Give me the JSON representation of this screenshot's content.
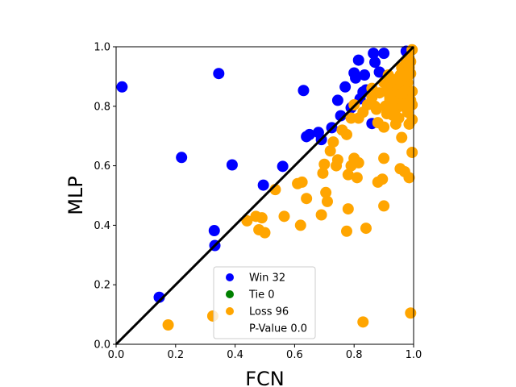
{
  "chart_data": {
    "type": "scatter",
    "title": "",
    "xlabel": "FCN",
    "ylabel": "MLP",
    "xlim": [
      0,
      1
    ],
    "ylim": [
      0,
      1
    ],
    "xticks": [
      "0.0",
      "0.2",
      "0.4",
      "0.6",
      "0.8",
      "1.0"
    ],
    "yticks": [
      "0.0",
      "0.2",
      "0.4",
      "0.6",
      "0.8",
      "1.0"
    ],
    "grid": false,
    "legend_position": "bottom-center",
    "diagonal_line": {
      "from": [
        0,
        0
      ],
      "to": [
        1,
        1
      ],
      "color": "#000000"
    },
    "legend": [
      {
        "label": "Win 32",
        "color": "#0000ff",
        "marker": "circle"
      },
      {
        "label": "Tie 0",
        "color": "#008000",
        "marker": "circle"
      },
      {
        "label": "Loss 96",
        "color": "#ffa500",
        "marker": "circle"
      },
      {
        "label": "P-Value 0.0",
        "color": "none",
        "marker": "none"
      }
    ],
    "series": [
      {
        "name": "Win 32",
        "color": "#0000ff",
        "points": [
          [
            0.02,
            0.865
          ],
          [
            0.345,
            0.91
          ],
          [
            0.22,
            0.628
          ],
          [
            0.39,
            0.603
          ],
          [
            0.495,
            0.535
          ],
          [
            0.56,
            0.598
          ],
          [
            0.33,
            0.382
          ],
          [
            0.332,
            0.332
          ],
          [
            0.145,
            0.158
          ],
          [
            0.63,
            0.853
          ],
          [
            0.64,
            0.698
          ],
          [
            0.65,
            0.705
          ],
          [
            0.68,
            0.712
          ],
          [
            0.69,
            0.688
          ],
          [
            0.725,
            0.728
          ],
          [
            0.745,
            0.82
          ],
          [
            0.755,
            0.768
          ],
          [
            0.77,
            0.865
          ],
          [
            0.8,
            0.912
          ],
          [
            0.805,
            0.895
          ],
          [
            0.815,
            0.955
          ],
          [
            0.82,
            0.825
          ],
          [
            0.83,
            0.848
          ],
          [
            0.835,
            0.905
          ],
          [
            0.84,
            0.855
          ],
          [
            0.865,
            0.978
          ],
          [
            0.87,
            0.948
          ],
          [
            0.885,
            0.915
          ],
          [
            0.9,
            0.978
          ],
          [
            0.975,
            0.985
          ],
          [
            0.86,
            0.742
          ],
          [
            0.79,
            0.795
          ]
        ]
      },
      {
        "name": "Tie 0",
        "color": "#008000",
        "points": []
      },
      {
        "name": "Loss 96",
        "color": "#ffa500",
        "points": [
          [
            0.175,
            0.065
          ],
          [
            0.325,
            0.095
          ],
          [
            0.83,
            0.075
          ],
          [
            0.99,
            0.105
          ],
          [
            0.44,
            0.415
          ],
          [
            0.47,
            0.43
          ],
          [
            0.49,
            0.425
          ],
          [
            0.48,
            0.385
          ],
          [
            0.5,
            0.375
          ],
          [
            0.535,
            0.52
          ],
          [
            0.565,
            0.43
          ],
          [
            0.61,
            0.54
          ],
          [
            0.625,
            0.545
          ],
          [
            0.62,
            0.4
          ],
          [
            0.64,
            0.49
          ],
          [
            0.69,
            0.435
          ],
          [
            0.705,
            0.51
          ],
          [
            0.71,
            0.48
          ],
          [
            0.695,
            0.575
          ],
          [
            0.7,
            0.605
          ],
          [
            0.72,
            0.65
          ],
          [
            0.73,
            0.68
          ],
          [
            0.74,
            0.6
          ],
          [
            0.745,
            0.62
          ],
          [
            0.76,
            0.72
          ],
          [
            0.775,
            0.705
          ],
          [
            0.78,
            0.57
          ],
          [
            0.79,
            0.6
          ],
          [
            0.8,
            0.625
          ],
          [
            0.81,
            0.56
          ],
          [
            0.815,
            0.61
          ],
          [
            0.78,
            0.455
          ],
          [
            0.775,
            0.38
          ],
          [
            0.84,
            0.39
          ],
          [
            0.79,
            0.76
          ],
          [
            0.815,
            0.76
          ],
          [
            0.8,
            0.805
          ],
          [
            0.83,
            0.78
          ],
          [
            0.845,
            0.805
          ],
          [
            0.86,
            0.83
          ],
          [
            0.875,
            0.79
          ],
          [
            0.88,
            0.745
          ],
          [
            0.885,
            0.845
          ],
          [
            0.9,
            0.73
          ],
          [
            0.905,
            0.8
          ],
          [
            0.91,
            0.775
          ],
          [
            0.915,
            0.845
          ],
          [
            0.92,
            0.82
          ],
          [
            0.93,
            0.855
          ],
          [
            0.935,
            0.8
          ],
          [
            0.94,
            0.74
          ],
          [
            0.945,
            0.86
          ],
          [
            0.95,
            0.83
          ],
          [
            0.955,
            0.905
          ],
          [
            0.96,
            0.93
          ],
          [
            0.965,
            0.87
          ],
          [
            0.97,
            0.84
          ],
          [
            0.975,
            0.945
          ],
          [
            0.98,
            0.88
          ],
          [
            0.985,
            0.96
          ],
          [
            0.99,
            0.91
          ],
          [
            0.995,
            0.85
          ],
          [
            0.995,
            0.805
          ],
          [
            0.985,
            0.74
          ],
          [
            0.995,
            0.755
          ],
          [
            0.96,
            0.695
          ],
          [
            0.995,
            0.645
          ],
          [
            0.955,
            0.59
          ],
          [
            0.97,
            0.58
          ],
          [
            0.985,
            0.56
          ],
          [
            0.9,
            0.625
          ],
          [
            0.88,
            0.545
          ],
          [
            0.895,
            0.555
          ],
          [
            0.9,
            0.465
          ],
          [
            0.9,
            0.88
          ],
          [
            0.91,
            0.87
          ],
          [
            0.92,
            0.83
          ],
          [
            0.925,
            0.81
          ],
          [
            0.94,
            0.79
          ],
          [
            0.96,
            0.84
          ],
          [
            0.965,
            0.8
          ],
          [
            0.975,
            0.81
          ],
          [
            0.98,
            0.78
          ],
          [
            0.99,
            0.82
          ],
          [
            0.93,
            0.77
          ],
          [
            0.95,
            0.76
          ],
          [
            0.87,
            0.8
          ],
          [
            0.98,
            0.9
          ],
          [
            0.985,
            0.93
          ],
          [
            0.995,
            0.99
          ],
          [
            0.99,
            0.95
          ],
          [
            0.97,
            0.9
          ],
          [
            0.945,
            0.88
          ],
          [
            0.93,
            0.89
          ],
          [
            0.86,
            0.86
          ],
          [
            0.915,
            0.905
          ]
        ]
      }
    ]
  }
}
